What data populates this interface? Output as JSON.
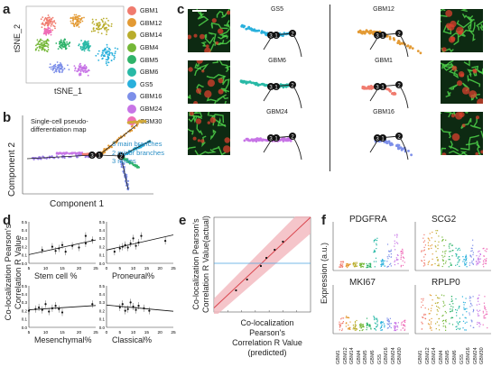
{
  "panels": {
    "a": {
      "label": "a",
      "xlabel": "tSNE_1",
      "ylabel": "tSNE_2",
      "legend": [
        {
          "name": "GBM1",
          "color": "#f07b6e"
        },
        {
          "name": "GBM12",
          "color": "#e39a34"
        },
        {
          "name": "GBM14",
          "color": "#b9ad2c"
        },
        {
          "name": "GBM4",
          "color": "#74b737"
        },
        {
          "name": "GBM5",
          "color": "#2fb36a"
        },
        {
          "name": "GBM6",
          "color": "#28b9a6"
        },
        {
          "name": "GS5",
          "color": "#29b0dc"
        },
        {
          "name": "GBM16",
          "color": "#7d8fe9"
        },
        {
          "name": "GBM24",
          "color": "#c774e6"
        },
        {
          "name": "GBM30",
          "color": "#ef6eb8"
        }
      ]
    },
    "b": {
      "label": "b",
      "title_line1": "Single-cell pseudo-",
      "title_line2": "differentiation map",
      "xlabel": "Component 1",
      "ylabel": "Component 2",
      "notes": [
        "3 main branches",
        "2 minor branches",
        "3 nodes"
      ],
      "note_color": "#2b8fc6"
    },
    "c": {
      "label": "c",
      "trajectories": [
        {
          "name": "GS5",
          "color": "#29b0dc"
        },
        {
          "name": "GBM12",
          "color": "#e39a34"
        },
        {
          "name": "GBM6",
          "color": "#28b9a6"
        },
        {
          "name": "GBM1",
          "color": "#f07b6e"
        },
        {
          "name": "GBM24",
          "color": "#c774e6"
        },
        {
          "name": "GBM16",
          "color": "#7d8fe9"
        }
      ],
      "node_labels": [
        "3",
        "1",
        "2"
      ]
    },
    "d": {
      "label": "d",
      "ylabel_line1": "Co-localization Pearson's",
      "ylabel_line2": "Correlation R Value",
      "subplots": [
        {
          "xlabel": "Stem cell %",
          "xticks": [
            "5",
            "10",
            "15",
            "20",
            "25"
          ],
          "yticks": [
            "0.5",
            "0.4",
            "0.3",
            "0.2",
            "0.1",
            "0.0"
          ]
        },
        {
          "xlabel": "Proneural%",
          "xticks": [
            "0",
            "5",
            "10",
            "15",
            "20",
            "25"
          ],
          "yticks": [
            "0.5",
            "0.4",
            "0.3",
            "0.2",
            "0.1",
            "0.0"
          ]
        },
        {
          "xlabel": "Mesenchymal%",
          "xticks": [
            "5",
            "10",
            "15",
            "20",
            "25"
          ],
          "yticks": [
            "0.5",
            "0.4",
            "0.3",
            "0.2",
            "0.1",
            "0.0"
          ]
        },
        {
          "xlabel": "Classical%",
          "xticks": [
            "0",
            "5",
            "10",
            "15",
            "20",
            "25"
          ],
          "yticks": [
            "0.5",
            "0.4",
            "0.3",
            "0.2",
            "0.1",
            "0.0"
          ]
        }
      ]
    },
    "e": {
      "label": "e",
      "ylabel_line1": "Co-localization Pearson's",
      "ylabel_line2": "Correlation R Value(actual)",
      "xlabel_line1": "Co-localization Pearson's",
      "xlabel_line2": "Correlation R Value",
      "xlabel_line3": "(predicted)"
    },
    "f": {
      "label": "f",
      "ylabel": "Expression (a.u.)",
      "genes": [
        "PDGFRA",
        "SCG2",
        "MKI67",
        "RPLP0"
      ],
      "samples": [
        "GBM1",
        "GBM12",
        "GBM14",
        "GBM4",
        "GBM5",
        "GBM6",
        "GS5",
        "GBM16",
        "GBM24",
        "GBM30"
      ],
      "yticks_top": [
        "100",
        "10",
        "1"
      ],
      "yticks_bottom": [
        "10",
        "1"
      ]
    }
  },
  "chart_data": [
    {
      "type": "scatter",
      "title": "",
      "xlabel": "Stem cell %",
      "ylabel": "Co-localization Pearson's Correlation R Value",
      "x": [
        9,
        12,
        13,
        14,
        15,
        16,
        18,
        20,
        22,
        22,
        24
      ],
      "y": [
        0.16,
        0.2,
        0.15,
        0.18,
        0.22,
        0.14,
        0.21,
        0.19,
        0.24,
        0.33,
        0.28
      ],
      "xlim": [
        5,
        25
      ],
      "ylim": [
        0.0,
        0.5
      ]
    },
    {
      "type": "scatter",
      "title": "",
      "xlabel": "Proneural%",
      "ylabel": "Co-localization Pearson's Correlation R Value",
      "x": [
        3,
        5,
        6,
        7,
        8,
        9,
        10,
        11,
        12,
        13,
        22
      ],
      "y": [
        0.14,
        0.18,
        0.2,
        0.22,
        0.19,
        0.24,
        0.3,
        0.21,
        0.25,
        0.33,
        0.27
      ],
      "xlim": [
        0,
        25
      ],
      "ylim": [
        0.0,
        0.5
      ]
    },
    {
      "type": "scatter",
      "title": "",
      "xlabel": "Mesenchymal%",
      "ylabel": "Co-localization Pearson's Correlation R Value",
      "x": [
        5,
        7,
        8,
        9,
        10,
        11,
        12,
        13,
        14,
        15,
        24
      ],
      "y": [
        0.2,
        0.22,
        0.24,
        0.21,
        0.28,
        0.19,
        0.23,
        0.26,
        0.22,
        0.18,
        0.28
      ],
      "xlim": [
        5,
        25
      ],
      "ylim": [
        0.0,
        0.5
      ]
    },
    {
      "type": "scatter",
      "title": "",
      "xlabel": "Classical%",
      "ylabel": "Co-localization Pearson's Correlation R Value",
      "x": [
        5,
        6,
        7,
        8,
        9,
        10,
        11,
        12,
        14,
        16
      ],
      "y": [
        0.24,
        0.28,
        0.2,
        0.22,
        0.3,
        0.25,
        0.21,
        0.26,
        0.23,
        0.2
      ],
      "xlim": [
        0,
        25
      ],
      "ylim": [
        0.0,
        0.5
      ]
    },
    {
      "type": "scatter",
      "title": "",
      "xlabel": "Co-localization Pearson's Correlation R Value (predicted)",
      "ylabel": "Co-localization Pearson's Correlation R Value(actual)",
      "x": [
        0.08,
        0.12,
        0.17,
        0.19,
        0.22,
        0.25
      ],
      "y": [
        0.08,
        0.12,
        0.17,
        0.2,
        0.23,
        0.26
      ],
      "xlim": [
        0.0,
        0.35
      ],
      "ylim": [
        0.0,
        0.35
      ],
      "reference_line": 0.18
    }
  ]
}
